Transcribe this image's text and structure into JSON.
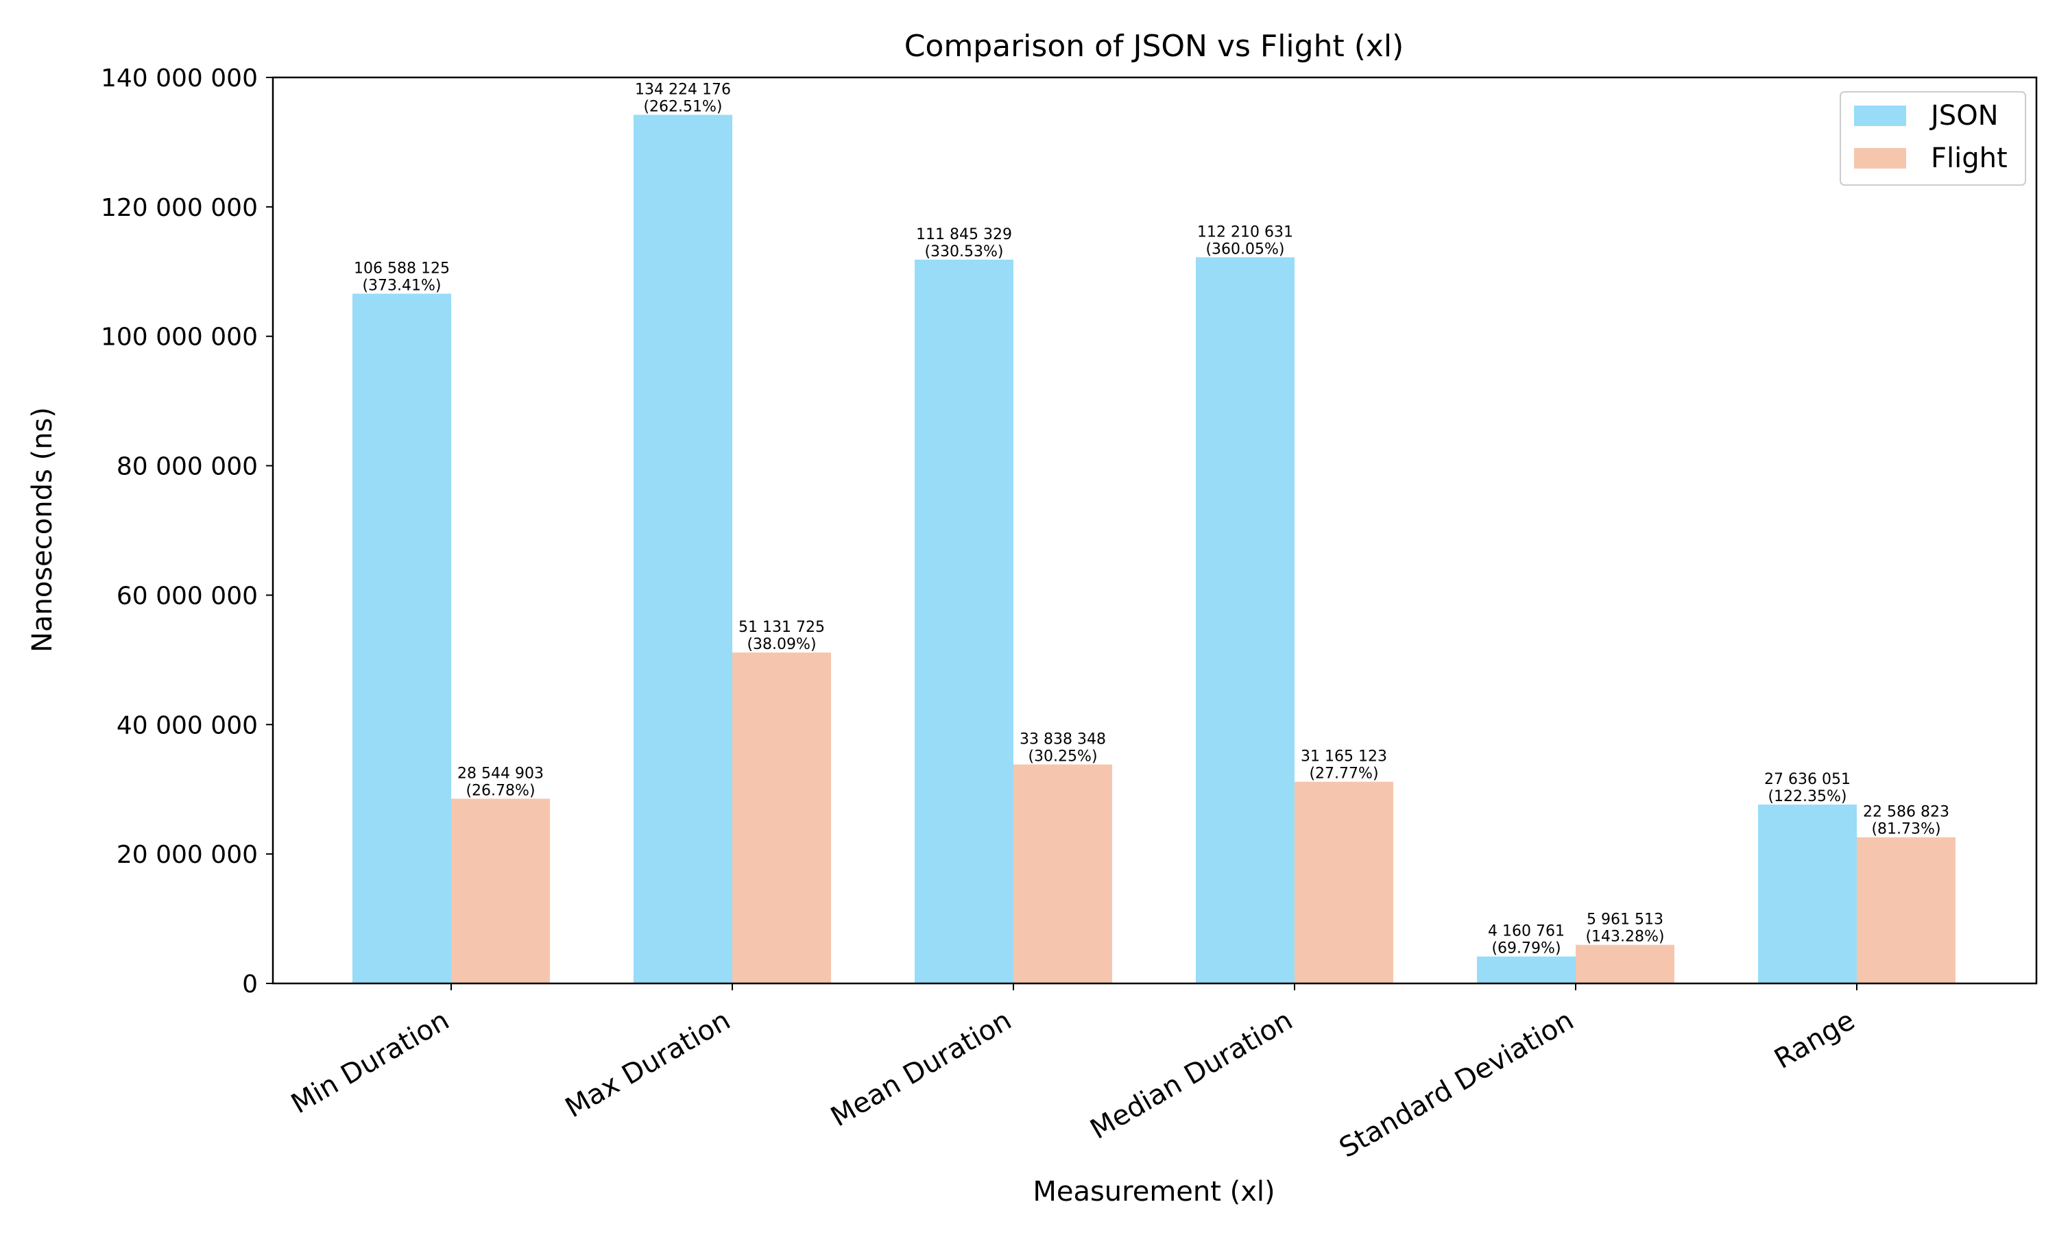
{
  "chart_data": {
    "type": "bar",
    "title": "Comparison of JSON vs Flight (xl)",
    "xlabel": "Measurement (xl)",
    "ylabel": "Nanoseconds (ns)",
    "ylim": [
      0,
      140000000
    ],
    "yticks": [
      0,
      20000000,
      40000000,
      60000000,
      80000000,
      100000000,
      120000000,
      140000000
    ],
    "ytick_labels": [
      "0",
      "20 000 000",
      "40 000 000",
      "60 000 000",
      "80 000 000",
      "100 000 000",
      "120 000 000",
      "140 000 000"
    ],
    "categories": [
      "Min Duration",
      "Max Duration",
      "Mean Duration",
      "Median Duration",
      "Standard Deviation",
      "Range"
    ],
    "series": [
      {
        "name": "JSON",
        "color": "#98dcf7",
        "values": [
          106588125,
          134224176,
          111845329,
          112210631,
          4160761,
          27636051
        ],
        "value_labels": [
          "106 588 125",
          "134 224 176",
          "111 845 329",
          "112 210 631",
          "4 160 761",
          "27 636 051"
        ],
        "pct_labels": [
          "(373.41%)",
          "(262.51%)",
          "(330.53%)",
          "(360.05%)",
          "(69.79%)",
          "(122.35%)"
        ]
      },
      {
        "name": "Flight",
        "color": "#f5c6ad",
        "values": [
          28544903,
          51131725,
          33838348,
          31165123,
          5961513,
          22586823
        ],
        "value_labels": [
          "28 544 903",
          "51 131 725",
          "33 838 348",
          "31 165 123",
          "5 961 513",
          "22 586 823"
        ],
        "pct_labels": [
          "(26.78%)",
          "(38.09%)",
          "(30.25%)",
          "(27.77%)",
          "(143.28%)",
          "(81.73%)"
        ]
      }
    ],
    "legend_position": "top-right",
    "grid": false
  }
}
